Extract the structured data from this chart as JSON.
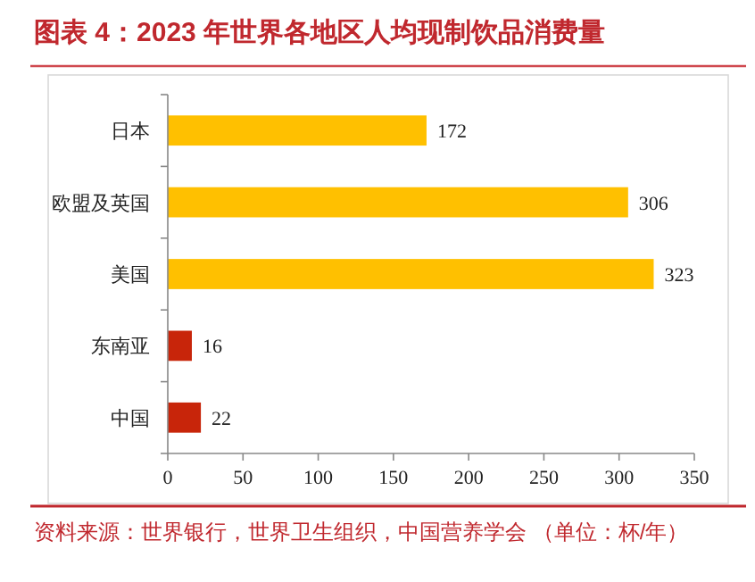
{
  "chart_data": {
    "type": "bar",
    "orientation": "horizontal",
    "title": "图表 4：2023 年世界各地区人均现制饮品消费量",
    "categories": [
      "日本",
      "欧盟及英国",
      "美国",
      "东南亚",
      "中国"
    ],
    "values": [
      172,
      306,
      323,
      16,
      22
    ],
    "colors": [
      "#ffc000",
      "#ffc000",
      "#ffc000",
      "#c8250a",
      "#c8250a"
    ],
    "xlim": [
      0,
      350
    ],
    "xticks": [
      0,
      50,
      100,
      150,
      200,
      250,
      300,
      350
    ],
    "data_labels": true,
    "grid": false,
    "annotations": [
      "资料来源：世界银行，世界卫生组织，中国营养学会 （单位：杯/年）"
    ]
  }
}
